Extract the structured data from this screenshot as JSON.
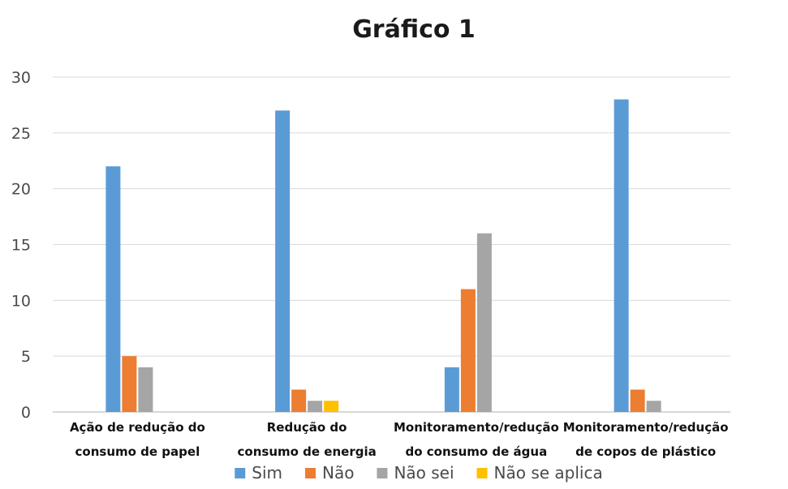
{
  "chart_data": {
    "type": "bar",
    "title": "Gráfico 1",
    "xlabel": "",
    "ylabel": "",
    "ylim": [
      0,
      30
    ],
    "yticks": [
      "0",
      "5",
      "10",
      "15",
      "20",
      "25",
      "30"
    ],
    "grid": true,
    "legend_position": "bottom",
    "categories": [
      [
        "Ação de redução do",
        "consumo de papel"
      ],
      [
        "Redução do",
        "consumo de energia"
      ],
      [
        "Monitoramento/redução",
        "do consumo de água"
      ],
      [
        "Monitoramento/redução",
        "de copos de plástico"
      ]
    ],
    "series": [
      {
        "name": "Sim",
        "color": "#5b9bd5",
        "values": [
          22,
          27,
          4,
          28
        ]
      },
      {
        "name": "Não",
        "color": "#ed7d31",
        "values": [
          5,
          2,
          11,
          2
        ]
      },
      {
        "name": "Não sei",
        "color": "#a5a5a5",
        "values": [
          4,
          1,
          16,
          1
        ]
      },
      {
        "name": "Não se aplica",
        "color": "#ffc000",
        "values": [
          0,
          1,
          0,
          0
        ]
      }
    ]
  }
}
